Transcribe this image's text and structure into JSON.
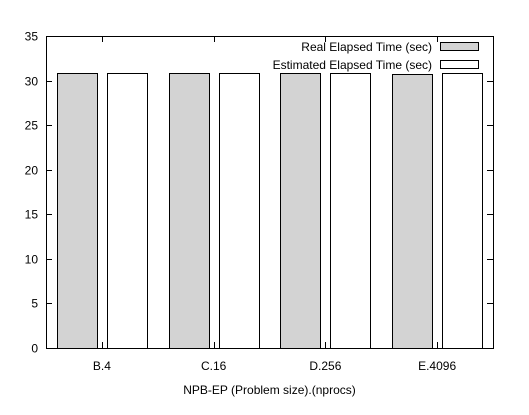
{
  "chart_data": {
    "type": "bar",
    "title": "",
    "xlabel": "NPB-EP (Problem size).(nprocs)",
    "ylabel": "",
    "categories": [
      "B.4",
      "C.16",
      "D.256",
      "E.4096"
    ],
    "ylim": [
      0,
      35
    ],
    "yticks": [
      0,
      5,
      10,
      15,
      20,
      25,
      30,
      35
    ],
    "grid": false,
    "legend_position": "top-right",
    "series": [
      {
        "name": "Real Elapsed Time (sec)",
        "values": [
          30.8,
          30.8,
          30.8,
          30.7
        ],
        "color": "#d3d3d3"
      },
      {
        "name": "Estimated Elapsed Time (sec)",
        "values": [
          30.8,
          30.8,
          30.8,
          30.8
        ],
        "color": "#ffffff"
      }
    ]
  }
}
